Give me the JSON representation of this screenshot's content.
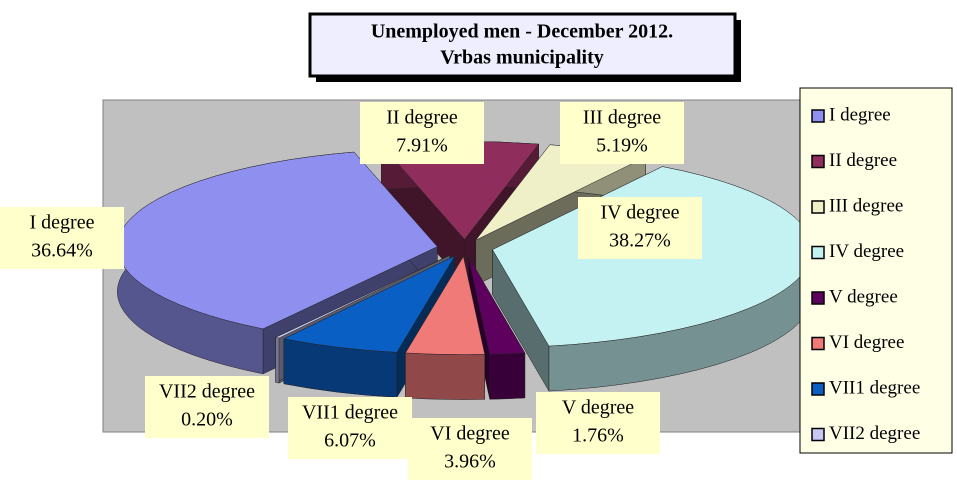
{
  "chart_data": {
    "type": "pie",
    "title": [
      "Unemployed men - December 2012.",
      "Vrbas municipality"
    ],
    "categories": [
      "I degree",
      "II degree",
      "III degree",
      "IV degree",
      "V degree",
      "VI degree",
      "VII1 degree",
      "VII2 degree"
    ],
    "values": [
      36.64,
      7.91,
      5.19,
      38.27,
      1.76,
      3.96,
      6.07,
      0.2
    ],
    "value_labels": [
      "36.64%",
      "7.91%",
      "5.19%",
      "38.27%",
      "1.76%",
      "3.96%",
      "6.07%",
      "0.20%"
    ],
    "colors": [
      "#8f8fef",
      "#8f2e5c",
      "#f0f0c8",
      "#c4f2f2",
      "#5e005e",
      "#f07a78",
      "#0a5fc4",
      "#c8c8f4"
    ],
    "legend": "right"
  }
}
